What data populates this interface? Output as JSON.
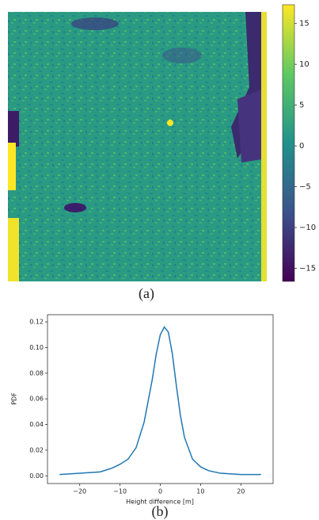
{
  "chart_data": [
    {
      "type": "heatmap",
      "caption": "(a)",
      "colormap": "viridis",
      "clim": [
        -16.6,
        17.3
      ],
      "cticks": [
        15,
        10,
        5,
        0,
        {
          "value": -5,
          "label": "−5"
        },
        {
          "value": -10,
          "label": "−10"
        },
        {
          "value": -15,
          "label": "−15"
        }
      ]
    },
    {
      "type": "line",
      "caption": "(b)",
      "x_label": "Height difference [m]",
      "y_label": "PDF",
      "color": "#1f77b4",
      "x": [
        -25,
        -20,
        -15,
        -12,
        -10,
        -8,
        -6,
        -4,
        -2,
        -1,
        0,
        1,
        2,
        3,
        4,
        5,
        6,
        8,
        10,
        12,
        15,
        20,
        25
      ],
      "values": [
        0.001,
        0.002,
        0.003,
        0.006,
        0.009,
        0.013,
        0.022,
        0.042,
        0.075,
        0.095,
        0.11,
        0.116,
        0.112,
        0.095,
        0.07,
        0.047,
        0.03,
        0.013,
        0.007,
        0.004,
        0.002,
        0.001,
        0.001
      ],
      "xlim": [
        -28,
        28
      ],
      "ylim": [
        -0.006,
        0.1256
      ],
      "xticks": [
        {
          "value": -20,
          "label": "−20"
        },
        {
          "value": -10,
          "label": "−10"
        },
        0,
        10,
        20
      ],
      "yticks": [
        {
          "value": 0,
          "label": "0.00"
        },
        {
          "value": 0.02,
          "label": "0.02"
        },
        {
          "value": 0.04,
          "label": "0.04"
        },
        {
          "value": 0.06,
          "label": "0.06"
        },
        {
          "value": 0.08,
          "label": "0.08"
        },
        {
          "value": 0.1,
          "label": "0.10"
        },
        {
          "value": 0.12,
          "label": "0.12"
        }
      ]
    }
  ]
}
